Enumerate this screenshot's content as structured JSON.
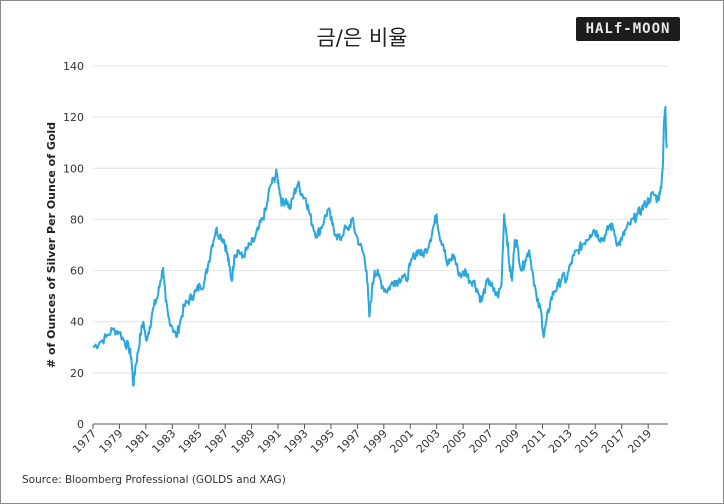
{
  "chart_data": {
    "type": "line",
    "title": "금/은 비율",
    "xlabel": "",
    "ylabel": "# of Ounces of Silver Per Ounce of Gold",
    "xlim": [
      1977,
      2020.5
    ],
    "ylim": [
      0,
      140
    ],
    "yticks": [
      0,
      20,
      40,
      60,
      80,
      100,
      120,
      140
    ],
    "xticks": [
      "1977",
      "1979",
      "1981",
      "1983",
      "1985",
      "1987",
      "1989",
      "1991",
      "1993",
      "1995",
      "1997",
      "1999",
      "2001",
      "2003",
      "2005",
      "2007",
      "2009",
      "2011",
      "2013",
      "2015",
      "2017",
      "2019"
    ],
    "grid": true,
    "series_color": "#2aa7dd",
    "series": [
      {
        "x": [
          1977.0,
          1977.5,
          1978.0,
          1978.5,
          1979.0,
          1979.4,
          1979.7,
          1979.9,
          1980.05,
          1980.2,
          1980.4,
          1980.6,
          1980.8,
          1981.0,
          1981.3,
          1981.6,
          1981.9,
          1982.1,
          1982.3,
          1982.5,
          1982.7,
          1983.0,
          1983.3,
          1983.6,
          1983.9,
          1984.2,
          1984.5,
          1984.8,
          1985.1,
          1985.4,
          1985.7,
          1986.0,
          1986.3,
          1986.6,
          1986.9,
          1987.1,
          1987.3,
          1987.5,
          1987.7,
          1988.0,
          1988.3,
          1988.6,
          1988.9,
          1989.2,
          1989.5,
          1989.8,
          1990.1,
          1990.4,
          1990.7,
          1990.9,
          1991.1,
          1991.3,
          1991.6,
          1991.9,
          1992.2,
          1992.5,
          1992.8,
          1993.1,
          1993.3,
          1993.6,
          1993.9,
          1994.2,
          1994.5,
          1994.8,
          1995.1,
          1995.4,
          1995.7,
          1996.0,
          1996.3,
          1996.6,
          1996.9,
          1997.2,
          1997.5,
          1997.7,
          1997.9,
          1998.1,
          1998.3,
          1998.6,
          1998.9,
          1999.2,
          1999.5,
          1999.8,
          2000.1,
          2000.4,
          2000.7,
          2001.0,
          2001.3,
          2001.6,
          2001.9,
          2002.2,
          2002.5,
          2002.8,
          2003.0,
          2003.2,
          2003.5,
          2003.8,
          2004.0,
          2004.3,
          2004.6,
          2004.9,
          2005.2,
          2005.5,
          2005.8,
          2006.1,
          2006.4,
          2006.7,
          2007.0,
          2007.3,
          2007.6,
          2007.9,
          2008.1,
          2008.3,
          2008.5,
          2008.7,
          2008.9,
          2009.1,
          2009.4,
          2009.7,
          2010.0,
          2010.3,
          2010.6,
          2010.9,
          2011.1,
          2011.3,
          2011.6,
          2011.9,
          2012.2,
          2012.5,
          2012.8,
          2013.1,
          2013.4,
          2013.7,
          2014.0,
          2014.3,
          2014.6,
          2014.9,
          2015.2,
          2015.5,
          2015.8,
          2016.1,
          2016.4,
          2016.7,
          2017.0,
          2017.3,
          2017.6,
          2017.9,
          2018.2,
          2018.5,
          2018.8,
          2019.1,
          2019.4,
          2019.7,
          2019.9,
          2020.1,
          2020.2,
          2020.3,
          2020.4
        ],
        "values": [
          30,
          32,
          34,
          37,
          36,
          32,
          30,
          26,
          15,
          22,
          28,
          35,
          40,
          33,
          38,
          46,
          50,
          56,
          61,
          48,
          42,
          38,
          34,
          40,
          46,
          48,
          50,
          52,
          54,
          55,
          62,
          70,
          76,
          74,
          72,
          68,
          62,
          56,
          66,
          68,
          65,
          68,
          70,
          72,
          76,
          80,
          84,
          93,
          96,
          98,
          92,
          86,
          88,
          84,
          90,
          94,
          90,
          88,
          84,
          78,
          74,
          76,
          80,
          84,
          78,
          74,
          72,
          76,
          76,
          80,
          74,
          70,
          66,
          60,
          42,
          52,
          60,
          58,
          54,
          52,
          54,
          56,
          56,
          58,
          56,
          62,
          66,
          68,
          66,
          68,
          72,
          78,
          82,
          74,
          70,
          62,
          64,
          66,
          60,
          58,
          60,
          56,
          56,
          52,
          48,
          54,
          56,
          52,
          50,
          54,
          82,
          74,
          62,
          56,
          72,
          70,
          60,
          64,
          68,
          58,
          48,
          44,
          34,
          40,
          48,
          52,
          54,
          58,
          56,
          62,
          66,
          68,
          70,
          72,
          74,
          76,
          74,
          72,
          74,
          78,
          76,
          70,
          72,
          76,
          78,
          80,
          82,
          84,
          86,
          88,
          90,
          88,
          90,
          100,
          118,
          124,
          108
        ]
      }
    ]
  },
  "source": "Source: Bloomberg Professional (GOLDS and XAG)",
  "logo_text": "HALf-MOON"
}
